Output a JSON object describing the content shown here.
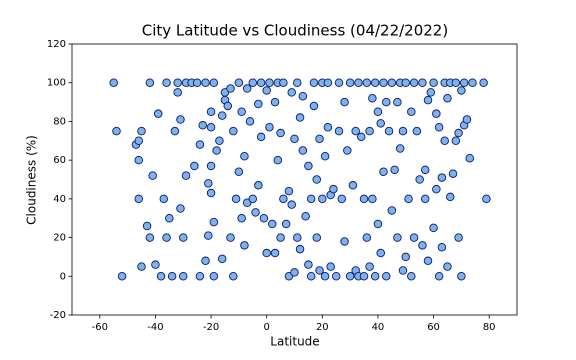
{
  "chart_data": {
    "type": "scatter",
    "title": "City Latitude vs Cloudiness (04/22/2022)",
    "x_label": "Latitude",
    "y_label": "Cloudiness (%)",
    "color": "#7fb2ea",
    "edgecolor": "#0a1a6e",
    "xlim": [
      -70,
      90
    ],
    "xticks": [
      -60,
      -40,
      -20,
      0,
      20,
      40,
      60,
      80
    ],
    "ylim": [
      -20,
      120
    ],
    "yticks": [
      -20,
      0,
      20,
      40,
      60,
      80,
      100,
      120
    ],
    "x": [
      -55,
      -54,
      -52,
      -47,
      -46,
      -46,
      -45,
      -46,
      -45,
      -43,
      -42,
      -42,
      -41,
      -40,
      -39,
      -38,
      -37,
      -36,
      -36,
      -35,
      -34,
      -33,
      -32,
      -32,
      -31,
      -31,
      -30,
      -30,
      -29,
      -29,
      -27,
      -26,
      -25,
      -24,
      -24,
      -23,
      -22,
      -22,
      -21,
      -21,
      -20,
      -20,
      -20,
      -20,
      -19,
      -19,
      -19,
      -18,
      -17,
      -16,
      -16,
      -15,
      -15,
      -14,
      -13,
      -13,
      -12,
      -12,
      -11,
      -10,
      -10,
      -9,
      -9,
      -8,
      -8,
      -7,
      -7,
      -6,
      -5,
      -5,
      -4,
      -3,
      -3,
      -2,
      -2,
      -1,
      0,
      0,
      1,
      1,
      2,
      3,
      3,
      4,
      4,
      5,
      5,
      6,
      6,
      7,
      8,
      8,
      9,
      9,
      10,
      10,
      11,
      11,
      12,
      12,
      13,
      13,
      14,
      15,
      15,
      16,
      16,
      17,
      17,
      18,
      18,
      19,
      19,
      20,
      20,
      21,
      21,
      22,
      22,
      23,
      23,
      24,
      25,
      26,
      26,
      27,
      28,
      28,
      29,
      30,
      30,
      31,
      32,
      32,
      33,
      33,
      34,
      35,
      35,
      36,
      36,
      37,
      37,
      38,
      38,
      39,
      39,
      40,
      40,
      41,
      41,
      42,
      42,
      43,
      43,
      44,
      45,
      45,
      46,
      47,
      47,
      48,
      48,
      49,
      49,
      50,
      50,
      51,
      52,
      52,
      53,
      53,
      54,
      55,
      56,
      56,
      57,
      57,
      58,
      58,
      59,
      60,
      60,
      61,
      61,
      62,
      62,
      63,
      63,
      64,
      64,
      65,
      65,
      66,
      66,
      67,
      68,
      68,
      69,
      69,
      70,
      70,
      71,
      71,
      72,
      73,
      74,
      78,
      79
    ],
    "values": [
      100,
      75,
      0,
      68,
      70,
      60,
      75,
      40,
      5,
      26,
      20,
      100,
      52,
      6,
      84,
      0,
      40,
      100,
      20,
      30,
      0,
      75,
      95,
      100,
      81,
      35,
      20,
      0,
      52,
      100,
      100,
      57,
      100,
      0,
      68,
      78,
      100,
      8,
      48,
      21,
      85,
      77,
      43,
      57,
      100,
      28,
      0,
      65,
      70,
      83,
      9,
      91,
      95,
      88,
      97,
      20,
      75,
      0,
      40,
      54,
      100,
      85,
      30,
      62,
      16,
      97,
      38,
      80,
      100,
      40,
      33,
      89,
      47,
      72,
      100,
      30,
      96,
      12,
      100,
      77,
      27,
      90,
      12,
      100,
      60,
      74,
      20,
      100,
      40,
      27,
      0,
      44,
      95,
      37,
      71,
      2,
      100,
      20,
      82,
      14,
      93,
      65,
      31,
      57,
      6,
      40,
      0,
      88,
      100,
      50,
      20,
      71,
      3,
      100,
      40,
      62,
      0,
      77,
      100,
      42,
      5,
      45,
      0,
      100,
      75,
      40,
      18,
      90,
      65,
      100,
      0,
      47,
      75,
      3,
      100,
      0,
      72,
      40,
      0,
      100,
      20,
      75,
      5,
      92,
      40,
      100,
      0,
      85,
      27,
      79,
      12,
      100,
      54,
      90,
      0,
      75,
      34,
      100,
      55,
      90,
      20,
      100,
      66,
      75,
      3,
      100,
      10,
      40,
      85,
      0,
      100,
      20,
      75,
      50,
      100,
      16,
      55,
      40,
      8,
      91,
      95,
      100,
      25,
      84,
      45,
      77,
      0,
      51,
      15,
      100,
      70,
      92,
      5,
      41,
      100,
      53,
      100,
      70,
      20,
      74,
      0,
      96,
      100,
      78,
      81,
      61,
      100,
      100,
      40
    ]
  }
}
